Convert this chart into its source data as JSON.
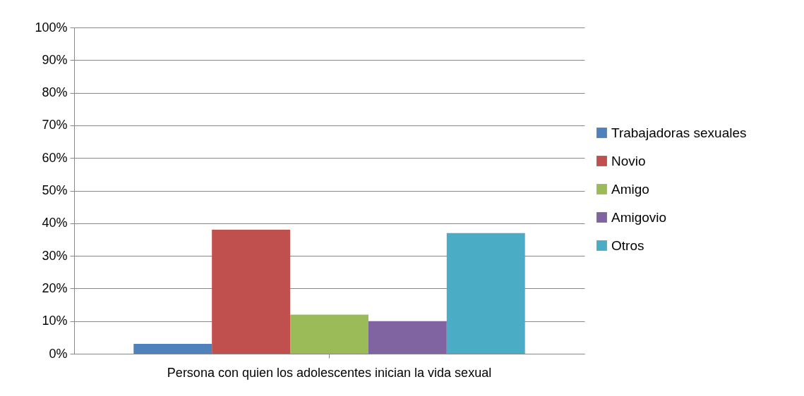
{
  "chart_data": {
    "type": "bar",
    "categories": [
      "Persona con quien los adolescentes inician la vida sexual"
    ],
    "series": [
      {
        "name": "Trabajadoras sexuales",
        "color": "#4f81bd",
        "values": [
          3
        ]
      },
      {
        "name": "Novio",
        "color": "#c0504d",
        "values": [
          38
        ]
      },
      {
        "name": "Amigo",
        "color": "#9bbb59",
        "values": [
          12
        ]
      },
      {
        "name": "Amigovio",
        "color": "#8064a2",
        "values": [
          10
        ]
      },
      {
        "name": "Otros",
        "color": "#4bacc6",
        "values": [
          37
        ]
      }
    ],
    "ylim": [
      0,
      100
    ],
    "yticks": [
      {
        "value": 0,
        "label": "0%"
      },
      {
        "value": 10,
        "label": "10%"
      },
      {
        "value": 20,
        "label": "20%"
      },
      {
        "value": 30,
        "label": "30%"
      },
      {
        "value": 40,
        "label": "40%"
      },
      {
        "value": 50,
        "label": "50%"
      },
      {
        "value": 60,
        "label": "60%"
      },
      {
        "value": 70,
        "label": "70%"
      },
      {
        "value": 80,
        "label": "80%"
      },
      {
        "value": 90,
        "label": "90%"
      },
      {
        "value": 100,
        "label": "100%"
      }
    ],
    "grid": "y",
    "legend": "right"
  }
}
